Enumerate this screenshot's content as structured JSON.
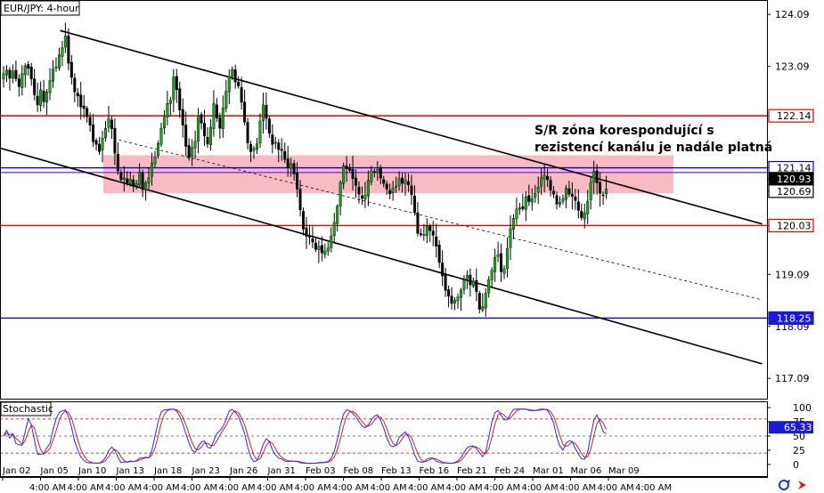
{
  "chart_data": {
    "type": "candlestick",
    "title": "EUR/JPY: 4-hour",
    "y_axis": {
      "range": [
        116.7,
        124.35
      ],
      "ticks": [
        {
          "value": 124.09,
          "label": "124.09"
        },
        {
          "value": 123.09,
          "label": "123.09"
        },
        {
          "value": 122.14,
          "label": "122.14"
        },
        {
          "value": 121.14,
          "label": "121.14"
        },
        {
          "value": 120.93,
          "label": "120.93"
        },
        {
          "value": 120.69,
          "label": "120.69"
        },
        {
          "value": 120.03,
          "label": "120.03"
        },
        {
          "value": 119.09,
          "label": "119.09"
        },
        {
          "value": 118.25,
          "label": "118.25"
        },
        {
          "value": 118.09,
          "label": "118.09"
        },
        {
          "value": 117.09,
          "label": "117.09"
        }
      ]
    },
    "x_axis": {
      "date_labels": [
        "Jan 02",
        "Jan 05",
        "Jan 10",
        "Jan 13",
        "Jan 18",
        "Jan 23",
        "Jan 26",
        "Jan 31",
        "Feb 03",
        "Feb 08",
        "Feb 13",
        "Feb 16",
        "Feb 21",
        "Feb 24",
        "Mar 01",
        "Mar 06",
        "Mar 09"
      ],
      "time_label": "4:00 AM"
    },
    "horizontal_levels": [
      {
        "value": 122.14,
        "label": "122.14",
        "color": "#e00000",
        "tag_style": "outline"
      },
      {
        "value": 121.14,
        "label": "121.14",
        "color": "#0000cc",
        "tag_style": "outline"
      },
      {
        "value": 121.05,
        "label": "",
        "color": "#7a3cc8",
        "tag_style": "none"
      },
      {
        "value": 120.93,
        "label": "120.93",
        "color": "#000000",
        "tag_style": "filled-black"
      },
      {
        "value": 120.69,
        "label": "120.69",
        "color": "#000000",
        "tag_style": "outline-black"
      },
      {
        "value": 120.03,
        "label": "120.03",
        "color": "#e00000",
        "tag_style": "outline"
      },
      {
        "value": 118.25,
        "label": "118.25",
        "color": "#0000cc",
        "tag_style": "filled-blue"
      }
    ],
    "zone": {
      "from": 120.65,
      "to": 121.38,
      "color": "#f7aeb8"
    },
    "channel": {
      "upper_line": [
        [
          0.073,
          123.78
        ],
        [
          0.925,
          120.06
        ]
      ],
      "lower_line": [
        [
          0.0,
          121.52
        ],
        [
          0.925,
          117.37
        ]
      ],
      "mid_line": [
        [
          0.138,
          121.7
        ],
        [
          0.925,
          118.6
        ]
      ]
    },
    "annotation": [
      "S/R zóna korespondující s",
      "rezistencí kanálu je nadále platná"
    ],
    "series": [
      {
        "close": [
          122.95,
          123.02,
          122.86,
          123.0,
          122.85,
          122.7,
          122.95,
          123.1,
          123.05,
          122.85,
          122.54,
          122.35,
          122.64,
          122.41,
          122.6,
          122.82,
          123.04,
          123.08,
          123.31,
          123.45,
          123.68,
          123.15,
          122.88,
          122.6,
          122.52,
          122.31,
          122.28,
          122.12,
          121.96,
          121.64,
          121.59,
          121.45,
          121.71,
          121.9,
          122.09,
          121.89,
          121.42,
          121.08,
          120.91,
          120.95,
          120.85,
          120.92,
          120.78,
          120.84,
          121.05,
          120.72,
          120.85,
          120.95,
          121.23,
          121.35,
          121.61,
          121.9,
          122.11,
          122.38,
          122.44,
          122.89,
          122.64,
          122.25,
          121.96,
          121.55,
          121.33,
          121.53,
          121.65,
          122.15,
          122.0,
          121.75,
          121.6,
          121.92,
          122.38,
          122.1,
          121.9,
          122.29,
          122.61,
          122.9,
          123.03,
          122.79,
          122.71,
          122.4,
          122.02,
          121.62,
          121.45,
          121.51,
          121.6,
          122.04,
          122.35,
          122.09,
          121.8,
          121.59,
          121.63,
          121.49,
          121.47,
          121.3,
          121.14,
          121.22,
          121.02,
          120.73,
          120.33,
          119.96,
          119.82,
          119.8,
          119.71,
          119.57,
          119.63,
          119.5,
          119.54,
          119.6,
          119.83,
          120.09,
          120.4,
          120.86,
          121.18,
          121.12,
          121.09,
          120.93,
          120.8,
          120.63,
          120.55,
          120.62,
          120.9,
          121.08,
          121.05,
          121.11,
          120.94,
          120.84,
          120.73,
          120.64,
          120.75,
          120.78,
          120.93,
          120.84,
          120.9,
          120.81,
          120.62,
          120.28,
          119.88,
          119.85,
          119.86,
          120.02,
          119.93,
          119.84,
          119.63,
          119.32,
          119.06,
          118.78,
          118.67,
          118.53,
          118.59,
          118.66,
          118.79,
          118.98,
          119.07,
          118.89,
          118.96,
          118.76,
          118.42,
          118.47,
          118.73,
          118.99,
          119.17,
          119.42,
          119.47,
          119.14,
          119.2,
          119.59,
          119.97,
          120.17,
          120.35,
          120.37,
          120.35,
          120.58,
          120.49,
          120.55,
          120.65,
          120.77,
          120.95,
          121.0,
          120.91,
          120.71,
          120.63,
          120.44,
          120.48,
          120.55,
          120.75,
          120.63,
          120.59,
          120.51,
          120.32,
          120.18,
          120.27,
          120.5,
          120.86,
          121.07,
          120.85,
          120.65,
          120.61,
          120.73
        ]
      }
    ],
    "ohlc_note": "closing prices per 4-hour bar estimated from the chart",
    "indicator": {
      "name": "Stochastic",
      "range": [
        0,
        100
      ],
      "ticks": [
        "100",
        "75",
        "50",
        "25",
        "0"
      ],
      "current_value": "65.33",
      "levels": [
        80,
        50,
        20
      ]
    }
  }
}
